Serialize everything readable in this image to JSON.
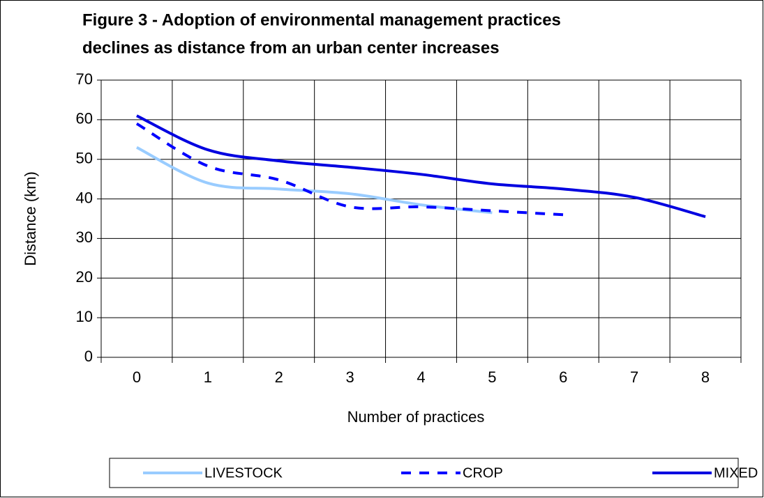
{
  "chart_data": {
    "type": "line",
    "title": [
      "Figure 3 - Adoption of environmental management practices",
      "declines as distance from an urban center increases"
    ],
    "x_label": "Number of practices",
    "y_label": "Distance (km)",
    "categories": [
      "0",
      "1",
      "2",
      "3",
      "4",
      "5",
      "6",
      "7",
      "8"
    ],
    "series": [
      {
        "name": "LIVESTOCK",
        "color": "#99ccff",
        "dashed": false,
        "values": [
          53,
          44,
          42.5,
          41.3,
          38.5,
          36.5,
          null,
          null,
          null
        ]
      },
      {
        "name": "CROP",
        "color": "#0000ff",
        "dashed": true,
        "values": [
          59,
          48.3,
          44.8,
          38,
          38,
          37,
          36,
          null,
          null
        ]
      },
      {
        "name": "MIXED",
        "color": "#0000e0",
        "dashed": false,
        "values": [
          61,
          52.4,
          49.6,
          48,
          46.2,
          43.8,
          42.5,
          40.4,
          35.5
        ]
      }
    ],
    "ylim": [
      0,
      70
    ],
    "yticks": [
      0,
      10,
      20,
      30,
      40,
      50,
      60,
      70
    ],
    "grid": true,
    "legend": "bottom"
  }
}
